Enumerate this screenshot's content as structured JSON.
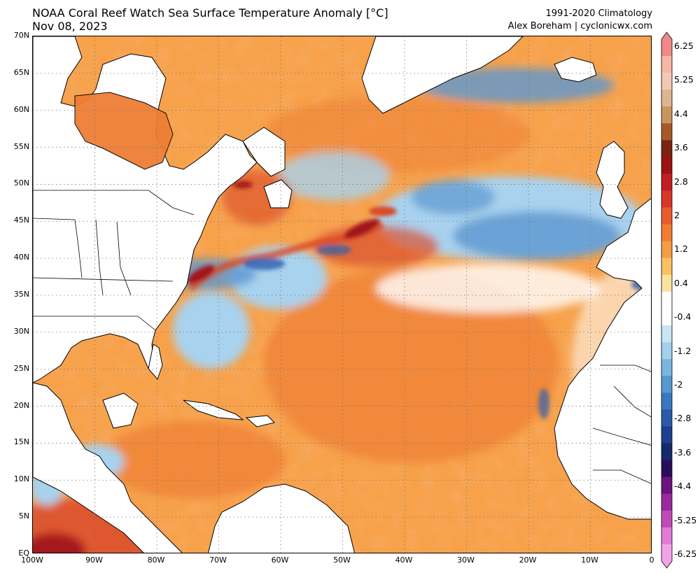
{
  "header": {
    "title": "NOAA Coral Reef Watch Sea Surface Temperature Anomaly [°C]",
    "date": "Nov 08, 2023",
    "climatology": "1991-2020 Climatology",
    "credit": "Alex Boreham | cyclonicwx.com"
  },
  "axes": {
    "lat_labels": [
      "70N",
      "65N",
      "60N",
      "55N",
      "50N",
      "45N",
      "40N",
      "35N",
      "30N",
      "25N",
      "20N",
      "15N",
      "10N",
      "5N",
      "EQ"
    ],
    "lon_labels": [
      "100W",
      "90W",
      "80W",
      "70W",
      "60W",
      "50W",
      "40W",
      "30W",
      "20W",
      "10W",
      "0"
    ]
  },
  "colorbar": {
    "labels": [
      "6.25",
      "5.25",
      "4.4",
      "3.6",
      "2.8",
      "2",
      "1.2",
      "0.4",
      "-0.4",
      "-1.2",
      "-2",
      "-2.8",
      "-3.6",
      "-4.4",
      "-5.25",
      "-6.25"
    ],
    "colors": [
      "#ef8a86",
      "#f6b8a4",
      "#f2c9b4",
      "#ddb58f",
      "#c9955f",
      "#a45a28",
      "#7a2412",
      "#9e1114",
      "#c21e20",
      "#d9362a",
      "#ea5a2f",
      "#f37c33",
      "#f79e41",
      "#fbc063",
      "#fde1a0",
      "#ffffff",
      "#ffffff",
      "#c8e6f4",
      "#a3d0ec",
      "#7ab6e0",
      "#5598d0",
      "#3a78bd",
      "#2a5aa8",
      "#1d3f8e",
      "#152a6b",
      "#2a0d5a",
      "#6a1381",
      "#9a2a9c",
      "#c24ab8",
      "#e27ad6",
      "#f3a2e8"
    ]
  },
  "map": {
    "lon_range": [
      -100,
      0
    ],
    "lat_range": [
      0,
      70
    ],
    "field_colors": {
      "land": "#ffffff",
      "warm_base": "#f7a14a",
      "warm_strong": "#ee7e34",
      "hot": "#d94a28",
      "extreme": "#a0151a",
      "neutral": "#ffffff",
      "cool": "#a8d2ee",
      "cold": "#5d97cf",
      "very_cold": "#2d5fae"
    }
  }
}
